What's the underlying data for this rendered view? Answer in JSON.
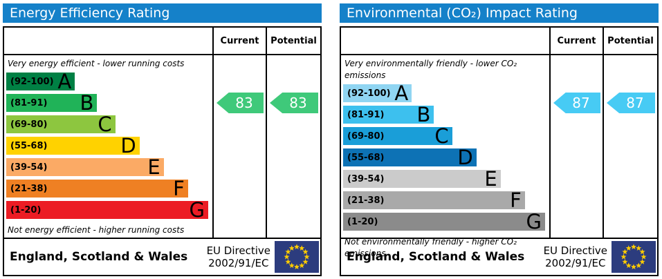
{
  "eu_flag": {
    "background": "#2c3c7e",
    "star_color": "#ffcc00"
  },
  "panels": [
    {
      "title": "Energy Efficiency Rating",
      "columns": {
        "current": "Current",
        "potential": "Potential"
      },
      "top_note": "Very energy efficient - lower running costs",
      "bottom_note": "Not energy efficient - higher running costs",
      "bands": [
        {
          "letter": "A",
          "range": "(92-100)",
          "color": "#008044",
          "width_pct": 34
        },
        {
          "letter": "B",
          "range": "(81-91)",
          "color": "#20b358",
          "width_pct": 45
        },
        {
          "letter": "C",
          "range": "(69-80)",
          "color": "#8dc63f",
          "width_pct": 54
        },
        {
          "letter": "D",
          "range": "(55-68)",
          "color": "#ffd200",
          "width_pct": 66
        },
        {
          "letter": "E",
          "range": "(39-54)",
          "color": "#fbaa65",
          "width_pct": 78
        },
        {
          "letter": "F",
          "range": "(21-38)",
          "color": "#ef8023",
          "width_pct": 90
        },
        {
          "letter": "G",
          "range": "(1-20)",
          "color": "#ec1c24",
          "width_pct": 100
        }
      ],
      "current": {
        "value": "83",
        "color": "#3fc97a",
        "band_index": 1
      },
      "potential": {
        "value": "83",
        "color": "#3fc97a",
        "band_index": 1
      },
      "footer": {
        "region": "England, Scotland & Wales",
        "directive_line1": "EU Directive",
        "directive_line2": "2002/91/EC"
      }
    },
    {
      "title": "Environmental (CO₂) Impact Rating",
      "columns": {
        "current": "Current",
        "potential": "Potential"
      },
      "top_note": "Very environmentally friendly - lower CO₂ emissions",
      "bottom_note": "Not environmentally friendly - higher CO₂ emissions",
      "bands": [
        {
          "letter": "A",
          "range": "(92-100)",
          "color": "#90d5f2",
          "width_pct": 34
        },
        {
          "letter": "B",
          "range": "(81-91)",
          "color": "#3dc0ee",
          "width_pct": 45
        },
        {
          "letter": "C",
          "range": "(69-80)",
          "color": "#1a9ed8",
          "width_pct": 54
        },
        {
          "letter": "D",
          "range": "(55-68)",
          "color": "#0d72b5",
          "width_pct": 66
        },
        {
          "letter": "E",
          "range": "(39-54)",
          "color": "#cbcbcb",
          "width_pct": 78
        },
        {
          "letter": "F",
          "range": "(21-38)",
          "color": "#a9a9a9",
          "width_pct": 90
        },
        {
          "letter": "G",
          "range": "(1-20)",
          "color": "#8b8b8b",
          "width_pct": 100
        }
      ],
      "current": {
        "value": "87",
        "color": "#47cbf4",
        "band_index": 1
      },
      "potential": {
        "value": "87",
        "color": "#47cbf4",
        "band_index": 1
      },
      "footer": {
        "region": "England, Scotland & Wales",
        "directive_line1": "EU Directive",
        "directive_line2": "2002/91/EC"
      }
    }
  ],
  "chart_data": [
    {
      "type": "bar",
      "title": "Energy Efficiency Rating",
      "categories": [
        "A (92-100)",
        "B (81-91)",
        "C (69-80)",
        "D (55-68)",
        "E (39-54)",
        "F (21-38)",
        "G (1-20)"
      ],
      "series": [
        {
          "name": "Current",
          "values": [
            83
          ]
        },
        {
          "name": "Potential",
          "values": [
            83
          ]
        }
      ],
      "current": 83,
      "potential": 83,
      "current_band": "B",
      "potential_band": "B",
      "xlabel": "",
      "ylabel": "",
      "ylim": [
        1,
        100
      ],
      "annotations": [
        "Very energy efficient - lower running costs",
        "Not energy efficient - higher running costs",
        "England, Scotland & Wales",
        "EU Directive 2002/91/EC"
      ]
    },
    {
      "type": "bar",
      "title": "Environmental (CO₂) Impact Rating",
      "categories": [
        "A (92-100)",
        "B (81-91)",
        "C (69-80)",
        "D (55-68)",
        "E (39-54)",
        "F (21-38)",
        "G (1-20)"
      ],
      "series": [
        {
          "name": "Current",
          "values": [
            87
          ]
        },
        {
          "name": "Potential",
          "values": [
            87
          ]
        }
      ],
      "current": 87,
      "potential": 87,
      "current_band": "B",
      "potential_band": "B",
      "xlabel": "",
      "ylabel": "",
      "ylim": [
        1,
        100
      ],
      "annotations": [
        "Very environmentally friendly - lower CO₂ emissions",
        "Not environmentally friendly - higher CO₂ emissions",
        "England, Scotland & Wales",
        "EU Directive 2002/91/EC"
      ]
    }
  ]
}
